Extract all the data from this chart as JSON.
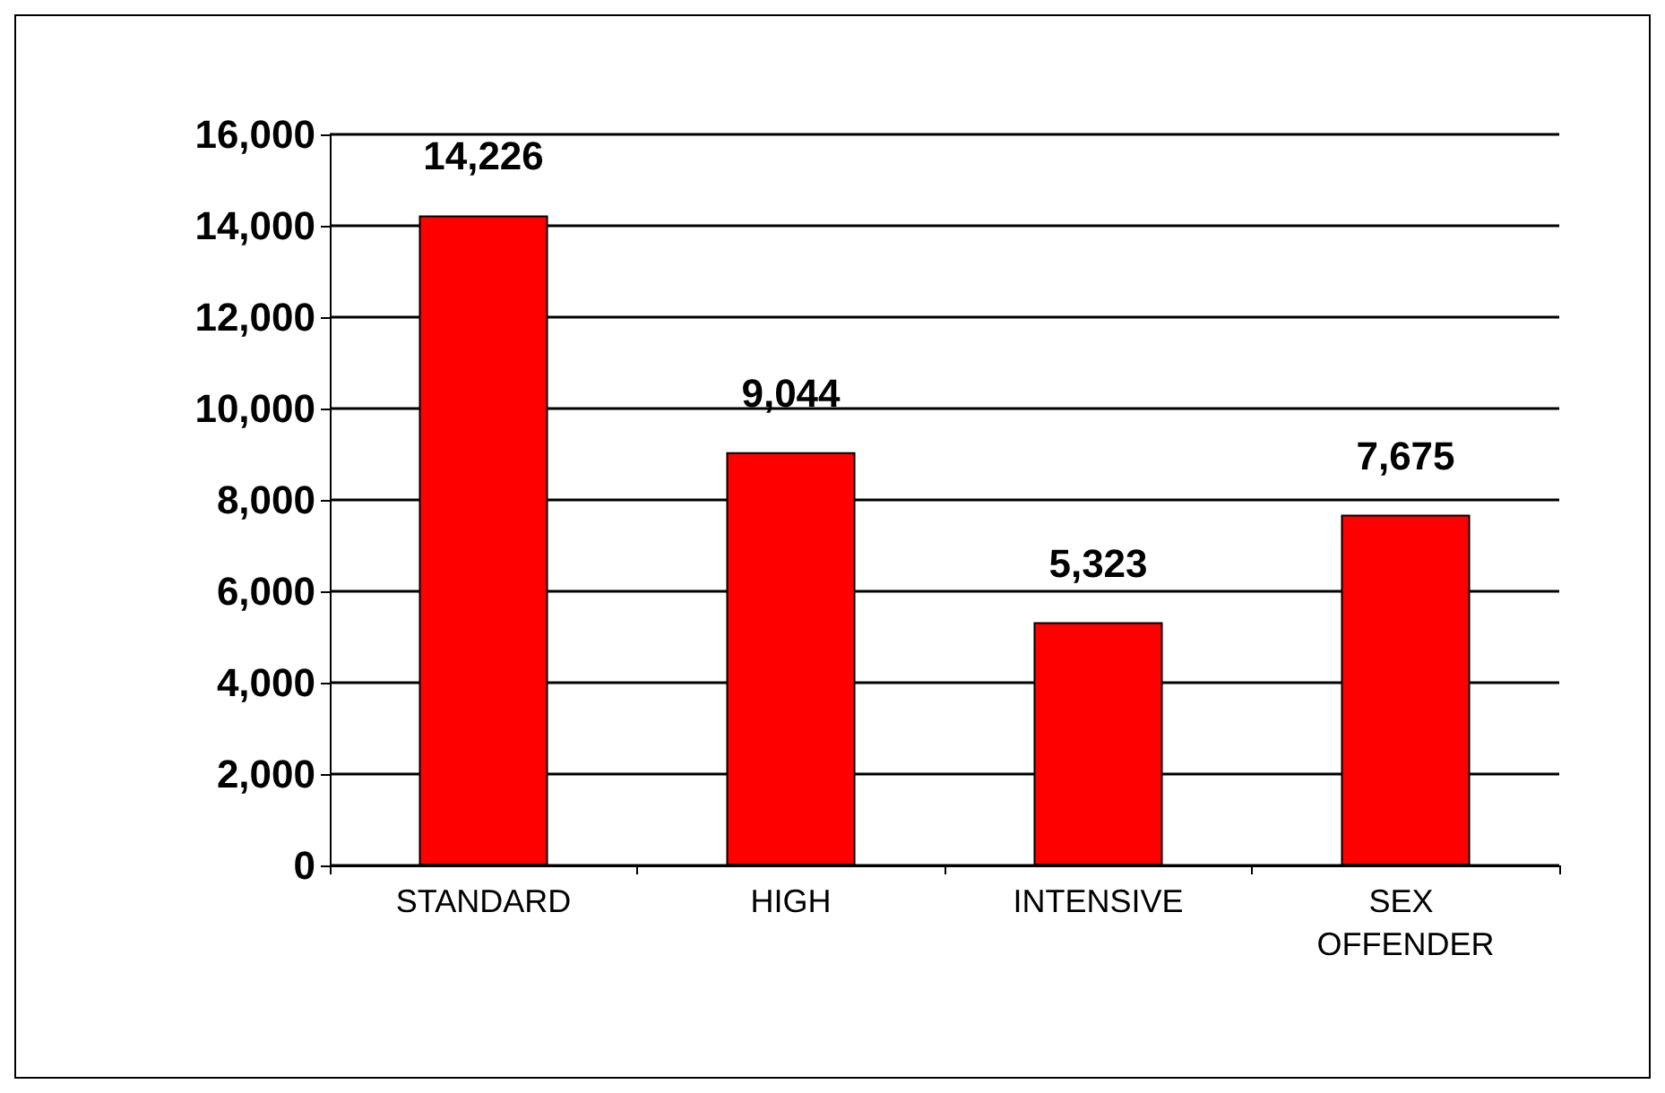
{
  "chart_data": {
    "type": "bar",
    "categories": [
      "STANDARD",
      "HIGH",
      "INTENSIVE",
      "SEX OFFENDER"
    ],
    "values": [
      14226,
      9044,
      5323,
      7675
    ],
    "value_labels": [
      "14,226",
      "9,044",
      "5,323",
      "7,675"
    ],
    "color": "#ff0000",
    "ylim": [
      0,
      16000
    ],
    "yticks": [
      0,
      {
        "value": 2000,
        "label": "2,000"
      },
      {
        "value": 4000,
        "label": "4,000"
      },
      {
        "value": 6000,
        "label": "6,000"
      },
      {
        "value": 8000,
        "label": "8,000"
      },
      {
        "value": 10000,
        "label": "10,000"
      },
      {
        "value": 12000,
        "label": "12,000"
      },
      {
        "value": 14000,
        "label": "14,000"
      },
      {
        "value": 16000,
        "label": "16,000"
      }
    ],
    "grid": "y"
  }
}
